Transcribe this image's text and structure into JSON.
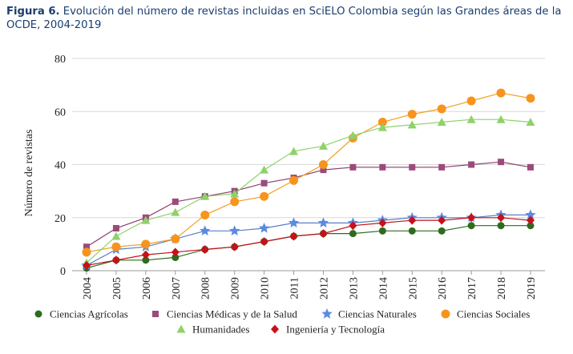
{
  "caption": {
    "label": "Figura 6.",
    "text": " Evolución del número de revistas incluidas en SciELO Colombia según las Grandes áreas de la OCDE, 2004-2019"
  },
  "chart_data": {
    "type": "line",
    "ylabel": "Número de revistas",
    "xlabel": "",
    "ylim": [
      0,
      80
    ],
    "yticks": [
      0,
      20,
      40,
      60,
      80
    ],
    "grid": "horizontal",
    "legend_position": "bottom",
    "x": [
      "2004",
      "2005",
      "2006",
      "2007",
      "2008",
      "2009",
      "2010",
      "2011",
      "2012",
      "2013",
      "2014",
      "2015",
      "2016",
      "2017",
      "2018",
      "2019"
    ],
    "series": [
      {
        "name": "Ciencias Agrícolas",
        "marker": "circle",
        "color": "#2e6b1f",
        "marker_color": "#2e6b1f",
        "values": [
          1,
          4,
          4,
          5,
          8,
          9,
          11,
          13,
          14,
          14,
          15,
          15,
          15,
          17,
          17,
          17
        ]
      },
      {
        "name": "Ciencias Médicas y de la Salud",
        "marker": "square",
        "color": "#8e3f6e",
        "marker_color": "#9b4a7c",
        "values": [
          9,
          16,
          20,
          26,
          28,
          30,
          33,
          35,
          38,
          39,
          39,
          39,
          39,
          40,
          41,
          39
        ]
      },
      {
        "name": "Ciencias Naturales",
        "marker": "star",
        "color": "#5a7fc4",
        "marker_color": "#5b8be0",
        "values": [
          2,
          8,
          9,
          12,
          15,
          15,
          16,
          18,
          18,
          18,
          19,
          20,
          20,
          20,
          21,
          21
        ]
      },
      {
        "name": "Ciencias Sociales",
        "marker": "bigcircle",
        "color": "#f0a020",
        "marker_color": "#f7941d",
        "values": [
          7,
          9,
          10,
          12,
          21,
          26,
          28,
          34,
          40,
          50,
          56,
          59,
          61,
          64,
          67,
          65
        ]
      },
      {
        "name": "Humanidades",
        "marker": "triangle",
        "color": "#8fd16a",
        "marker_color": "#8fd16a",
        "values": [
          3,
          13,
          19,
          22,
          28,
          29,
          38,
          45,
          47,
          51,
          54,
          55,
          56,
          57,
          57,
          56
        ]
      },
      {
        "name": "Ingeniería y Tecnología",
        "marker": "diamond",
        "color": "#c0111a",
        "marker_color": "#c8101a",
        "values": [
          2,
          4,
          6,
          7,
          8,
          9,
          11,
          13,
          14,
          17,
          18,
          19,
          19,
          20,
          20,
          19
        ]
      }
    ]
  }
}
